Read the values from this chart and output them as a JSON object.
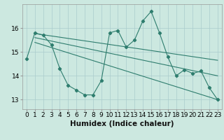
{
  "x": [
    0,
    1,
    2,
    3,
    4,
    5,
    6,
    7,
    8,
    9,
    10,
    11,
    12,
    13,
    14,
    15,
    16,
    17,
    18,
    19,
    20,
    21,
    22,
    23
  ],
  "y_main": [
    14.7,
    15.8,
    15.7,
    15.3,
    14.3,
    13.6,
    13.4,
    13.2,
    13.2,
    13.8,
    15.8,
    15.9,
    15.2,
    15.5,
    16.3,
    16.7,
    15.8,
    14.8,
    14.0,
    14.25,
    14.1,
    14.2,
    13.5,
    13.0
  ],
  "line1_x": [
    1,
    23
  ],
  "line1_y": [
    15.77,
    14.65
  ],
  "line2_x": [
    1,
    23
  ],
  "line2_y": [
    15.6,
    14.0
  ],
  "line3_x": [
    1,
    23
  ],
  "line3_y": [
    15.4,
    13.0
  ],
  "color": "#2e7d6e",
  "bg_color": "#cce8e0",
  "grid_color": "#aacccc",
  "xlabel": "Humidex (Indice chaleur)",
  "ylim": [
    12.6,
    17.0
  ],
  "xlim": [
    -0.5,
    23.5
  ],
  "yticks": [
    13,
    14,
    15,
    16
  ],
  "xticks": [
    0,
    1,
    2,
    3,
    4,
    5,
    6,
    7,
    8,
    9,
    10,
    11,
    12,
    13,
    14,
    15,
    16,
    17,
    18,
    19,
    20,
    21,
    22,
    23
  ],
  "marker": "D",
  "marker_size": 2.2,
  "linewidth": 0.8,
  "tick_fontsize": 6.5,
  "xlabel_fontsize": 7.5
}
